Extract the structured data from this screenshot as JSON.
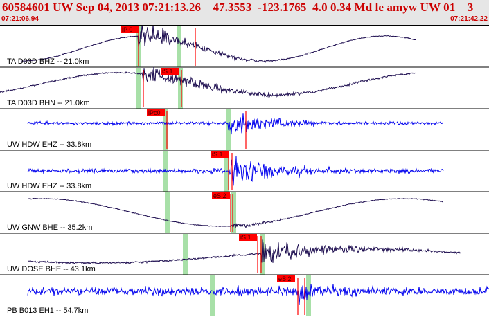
{
  "header": {
    "title": "60584601 UW Sep 04, 2013 07:21:13.26    47.3553  -123.1765  4.0 0.34 Md le amyw UW 01    3",
    "start_time": "07:21:06.94",
    "end_time": "07:21:42.22"
  },
  "colors": {
    "background": "#ffffff",
    "header_bg": "#e6e6e6",
    "title": "#cc0000",
    "trace_lowrate": "#1a0a4d",
    "trace_highrate": "#0000ee",
    "pick_bar": "#ff0000",
    "pick_window": "#a8e0a8",
    "divider": "#000000"
  },
  "channels": [
    {
      "label": "TA D03D BHZ -- 21.0km",
      "pick": "iP 0",
      "color": "lowrate"
    },
    {
      "label": "TA D03D BHN -- 21.0km",
      "pick": "iS 1",
      "color": "lowrate"
    },
    {
      "label": "UW HDW EHZ -- 33.8km",
      "pick": "iPc0",
      "color": "highrate"
    },
    {
      "label": "UW HDW EHZ -- 33.8km",
      "pick": "iS 1",
      "color": "highrate"
    },
    {
      "label": "UW GNW BHE -- 35.2km",
      "pick": "eS 2",
      "color": "lowrate"
    },
    {
      "label": "UW DOSE BHE -- 43.1km",
      "pick": "iS 1",
      "color": "lowrate"
    },
    {
      "label": "PB B013 EH1 -- 54.7km",
      "pick": "eS 2",
      "color": "highrate"
    }
  ]
}
